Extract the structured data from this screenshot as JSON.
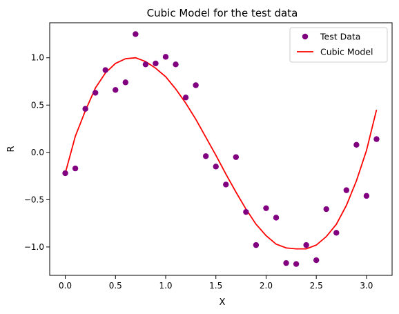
{
  "chart_data": {
    "type": "scatter",
    "title": "Cubic Model for the test data",
    "xlabel": "X",
    "ylabel": "R",
    "xlim": [
      -0.155,
      3.255
    ],
    "ylim": [
      -1.3,
      1.37
    ],
    "xticks": [
      0.0,
      0.5,
      1.0,
      1.5,
      2.0,
      2.5,
      3.0
    ],
    "xtick_labels": [
      "0.0",
      "0.5",
      "1.0",
      "1.5",
      "2.0",
      "2.5",
      "3.0"
    ],
    "yticks": [
      -1.0,
      -0.5,
      0.0,
      0.5,
      1.0
    ],
    "ytick_labels": [
      "−1.0",
      "−0.5",
      "0.0",
      "0.5",
      "1.0"
    ],
    "grid": false,
    "legend_position": "top-right",
    "series": [
      {
        "name": "Test Data",
        "kind": "scatter",
        "color": "#800080",
        "x": [
          0.0,
          0.1,
          0.2,
          0.3,
          0.4,
          0.5,
          0.6,
          0.7,
          0.8,
          0.9,
          1.0,
          1.1,
          1.2,
          1.3,
          1.4,
          1.5,
          1.6,
          1.7,
          1.8,
          1.9,
          2.0,
          2.1,
          2.2,
          2.3,
          2.4,
          2.5,
          2.6,
          2.7,
          2.8,
          2.9,
          3.0,
          3.1
        ],
        "y": [
          -0.22,
          -0.17,
          0.46,
          0.63,
          0.87,
          0.66,
          0.74,
          1.25,
          0.93,
          0.94,
          1.01,
          0.93,
          0.58,
          0.71,
          -0.04,
          -0.15,
          -0.34,
          -0.05,
          -0.63,
          -0.98,
          -0.59,
          -0.69,
          -1.17,
          -1.18,
          -0.98,
          -1.14,
          -0.6,
          -0.85,
          -0.4,
          0.08,
          -0.46,
          0.14
        ]
      },
      {
        "name": "Cubic Model",
        "kind": "line",
        "color": "#ff0000",
        "x": [
          0.0,
          0.1,
          0.2,
          0.3,
          0.4,
          0.5,
          0.6,
          0.7,
          0.8,
          0.9,
          1.0,
          1.1,
          1.2,
          1.3,
          1.4,
          1.5,
          1.6,
          1.7,
          1.8,
          1.9,
          2.0,
          2.1,
          2.2,
          2.3,
          2.4,
          2.5,
          2.6,
          2.7,
          2.8,
          2.9,
          3.0,
          3.1
        ],
        "y": [
          -0.22,
          0.17,
          0.44,
          0.68,
          0.84,
          0.94,
          0.99,
          1.0,
          0.96,
          0.89,
          0.8,
          0.67,
          0.52,
          0.35,
          0.16,
          -0.03,
          -0.23,
          -0.42,
          -0.6,
          -0.76,
          -0.88,
          -0.97,
          -1.01,
          -1.02,
          -1.02,
          -0.98,
          -0.89,
          -0.76,
          -0.56,
          -0.3,
          0.02,
          0.45
        ]
      }
    ]
  }
}
